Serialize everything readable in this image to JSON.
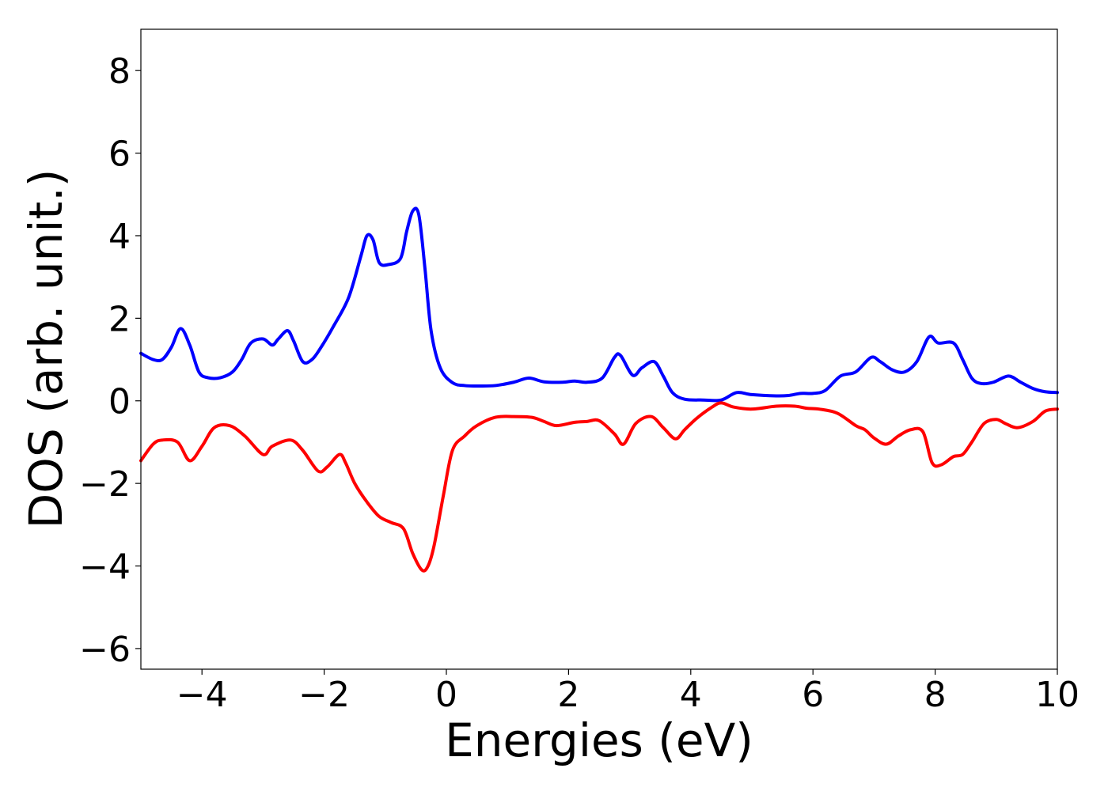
{
  "chart_data": {
    "type": "line",
    "title": "",
    "xlabel": "Energies (eV)",
    "ylabel": "DOS (arb. unit.)",
    "xlim": [
      -5,
      10
    ],
    "ylim": [
      -6.5,
      9
    ],
    "xticks": [
      -4,
      -2,
      0,
      2,
      4,
      6,
      8,
      10
    ],
    "xtick_labels": [
      "−4",
      "−2",
      "0",
      "2",
      "4",
      "6",
      "8",
      "10"
    ],
    "yticks": [
      -6,
      -4,
      -2,
      0,
      2,
      4,
      6,
      8
    ],
    "ytick_labels": [
      "−6",
      "−4",
      "−2",
      "0",
      "2",
      "4",
      "6",
      "8"
    ],
    "grid": false,
    "legend": "none",
    "series": [
      {
        "color": "#0000ff",
        "x": [
          -5.0,
          -4.8,
          -4.65,
          -4.5,
          -4.35,
          -4.2,
          -4.05,
          -3.9,
          -3.7,
          -3.5,
          -3.35,
          -3.2,
          -3.0,
          -2.85,
          -2.75,
          -2.6,
          -2.5,
          -2.35,
          -2.2,
          -2.05,
          -1.85,
          -1.6,
          -1.4,
          -1.3,
          -1.2,
          -1.1,
          -0.95,
          -0.75,
          -0.65,
          -0.55,
          -0.45,
          -0.35,
          -0.25,
          -0.1,
          0.1,
          0.3,
          0.5,
          0.8,
          1.1,
          1.35,
          1.6,
          1.9,
          2.1,
          2.3,
          2.55,
          2.75,
          2.85,
          3.05,
          3.2,
          3.4,
          3.55,
          3.7,
          3.9,
          4.2,
          4.5,
          4.75,
          5.0,
          5.4,
          5.6,
          5.8,
          6.0,
          6.2,
          6.45,
          6.7,
          6.95,
          7.1,
          7.3,
          7.5,
          7.7,
          7.9,
          8.05,
          8.3,
          8.45,
          8.6,
          8.75,
          8.95,
          9.2,
          9.4,
          9.6,
          9.8,
          10.0
        ],
        "values": [
          1.15,
          1.0,
          1.0,
          1.3,
          1.75,
          1.35,
          0.7,
          0.56,
          0.56,
          0.7,
          1.0,
          1.4,
          1.5,
          1.35,
          1.5,
          1.7,
          1.45,
          0.95,
          1.0,
          1.3,
          1.8,
          2.5,
          3.5,
          4.0,
          3.9,
          3.35,
          3.3,
          3.45,
          4.1,
          4.6,
          4.5,
          3.2,
          1.7,
          0.8,
          0.44,
          0.37,
          0.36,
          0.37,
          0.45,
          0.55,
          0.46,
          0.45,
          0.48,
          0.45,
          0.55,
          1.05,
          1.1,
          0.62,
          0.8,
          0.95,
          0.6,
          0.2,
          0.04,
          0.02,
          0.02,
          0.2,
          0.15,
          0.12,
          0.13,
          0.18,
          0.18,
          0.25,
          0.6,
          0.7,
          1.05,
          0.95,
          0.75,
          0.7,
          0.95,
          1.55,
          1.4,
          1.4,
          1.0,
          0.55,
          0.42,
          0.45,
          0.6,
          0.45,
          0.3,
          0.22,
          0.2
        ]
      },
      {
        "color": "#ff0000",
        "x": [
          -5.0,
          -4.8,
          -4.65,
          -4.4,
          -4.2,
          -4.0,
          -3.8,
          -3.55,
          -3.3,
          -3.0,
          -2.85,
          -2.55,
          -2.35,
          -2.1,
          -1.95,
          -1.75,
          -1.65,
          -1.5,
          -1.3,
          -1.1,
          -0.9,
          -0.7,
          -0.55,
          -0.4,
          -0.3,
          -0.2,
          -0.05,
          0.1,
          0.3,
          0.5,
          0.8,
          1.1,
          1.4,
          1.6,
          1.8,
          2.1,
          2.3,
          2.5,
          2.75,
          2.9,
          3.1,
          3.35,
          3.55,
          3.75,
          3.9,
          4.1,
          4.35,
          4.5,
          4.7,
          5.0,
          5.4,
          5.7,
          5.9,
          6.1,
          6.4,
          6.7,
          6.85,
          7.0,
          7.2,
          7.4,
          7.6,
          7.8,
          7.95,
          8.1,
          8.3,
          8.45,
          8.6,
          8.8,
          9.0,
          9.15,
          9.35,
          9.6,
          9.8,
          10.0
        ],
        "values": [
          -1.45,
          -1.05,
          -0.95,
          -1.0,
          -1.45,
          -1.1,
          -0.65,
          -0.6,
          -0.85,
          -1.3,
          -1.1,
          -0.95,
          -1.2,
          -1.7,
          -1.6,
          -1.3,
          -1.5,
          -2.0,
          -2.45,
          -2.8,
          -2.95,
          -3.1,
          -3.7,
          -4.1,
          -4.0,
          -3.5,
          -2.3,
          -1.2,
          -0.85,
          -0.6,
          -0.4,
          -0.38,
          -0.4,
          -0.5,
          -0.6,
          -0.52,
          -0.5,
          -0.48,
          -0.8,
          -1.05,
          -0.55,
          -0.38,
          -0.65,
          -0.92,
          -0.7,
          -0.42,
          -0.15,
          -0.05,
          -0.15,
          -0.2,
          -0.13,
          -0.13,
          -0.18,
          -0.2,
          -0.3,
          -0.6,
          -0.7,
          -0.9,
          -1.05,
          -0.85,
          -0.7,
          -0.75,
          -1.5,
          -1.55,
          -1.35,
          -1.3,
          -1.0,
          -0.55,
          -0.45,
          -0.55,
          -0.65,
          -0.5,
          -0.25,
          -0.2
        ]
      }
    ]
  }
}
